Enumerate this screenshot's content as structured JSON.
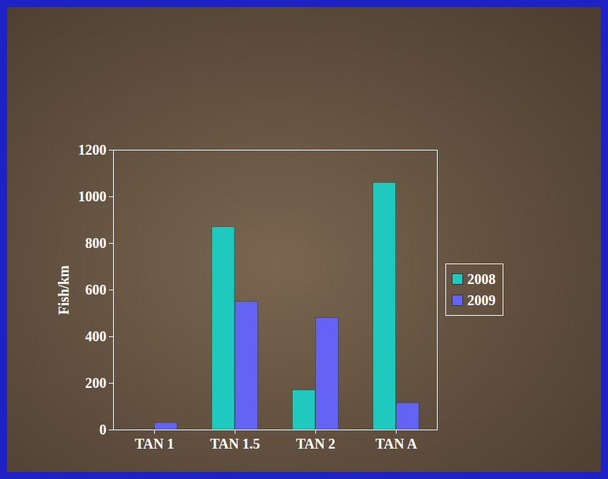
{
  "chart_data": {
    "type": "bar",
    "categories": [
      "TAN 1",
      "TAN 1.5",
      "TAN 2",
      "TAN A"
    ],
    "series": [
      {
        "name": "2008",
        "color": "#1fc9bd",
        "values": [
          3,
          870,
          170,
          1060
        ]
      },
      {
        "name": "2009",
        "color": "#6464f4",
        "values": [
          30,
          550,
          480,
          115
        ]
      }
    ],
    "y_label": "Fish/km",
    "ylim": [
      0,
      1200
    ],
    "yticks": [
      0,
      200,
      400,
      600,
      800,
      1000,
      1200
    ],
    "grid": false,
    "legend": "right"
  }
}
